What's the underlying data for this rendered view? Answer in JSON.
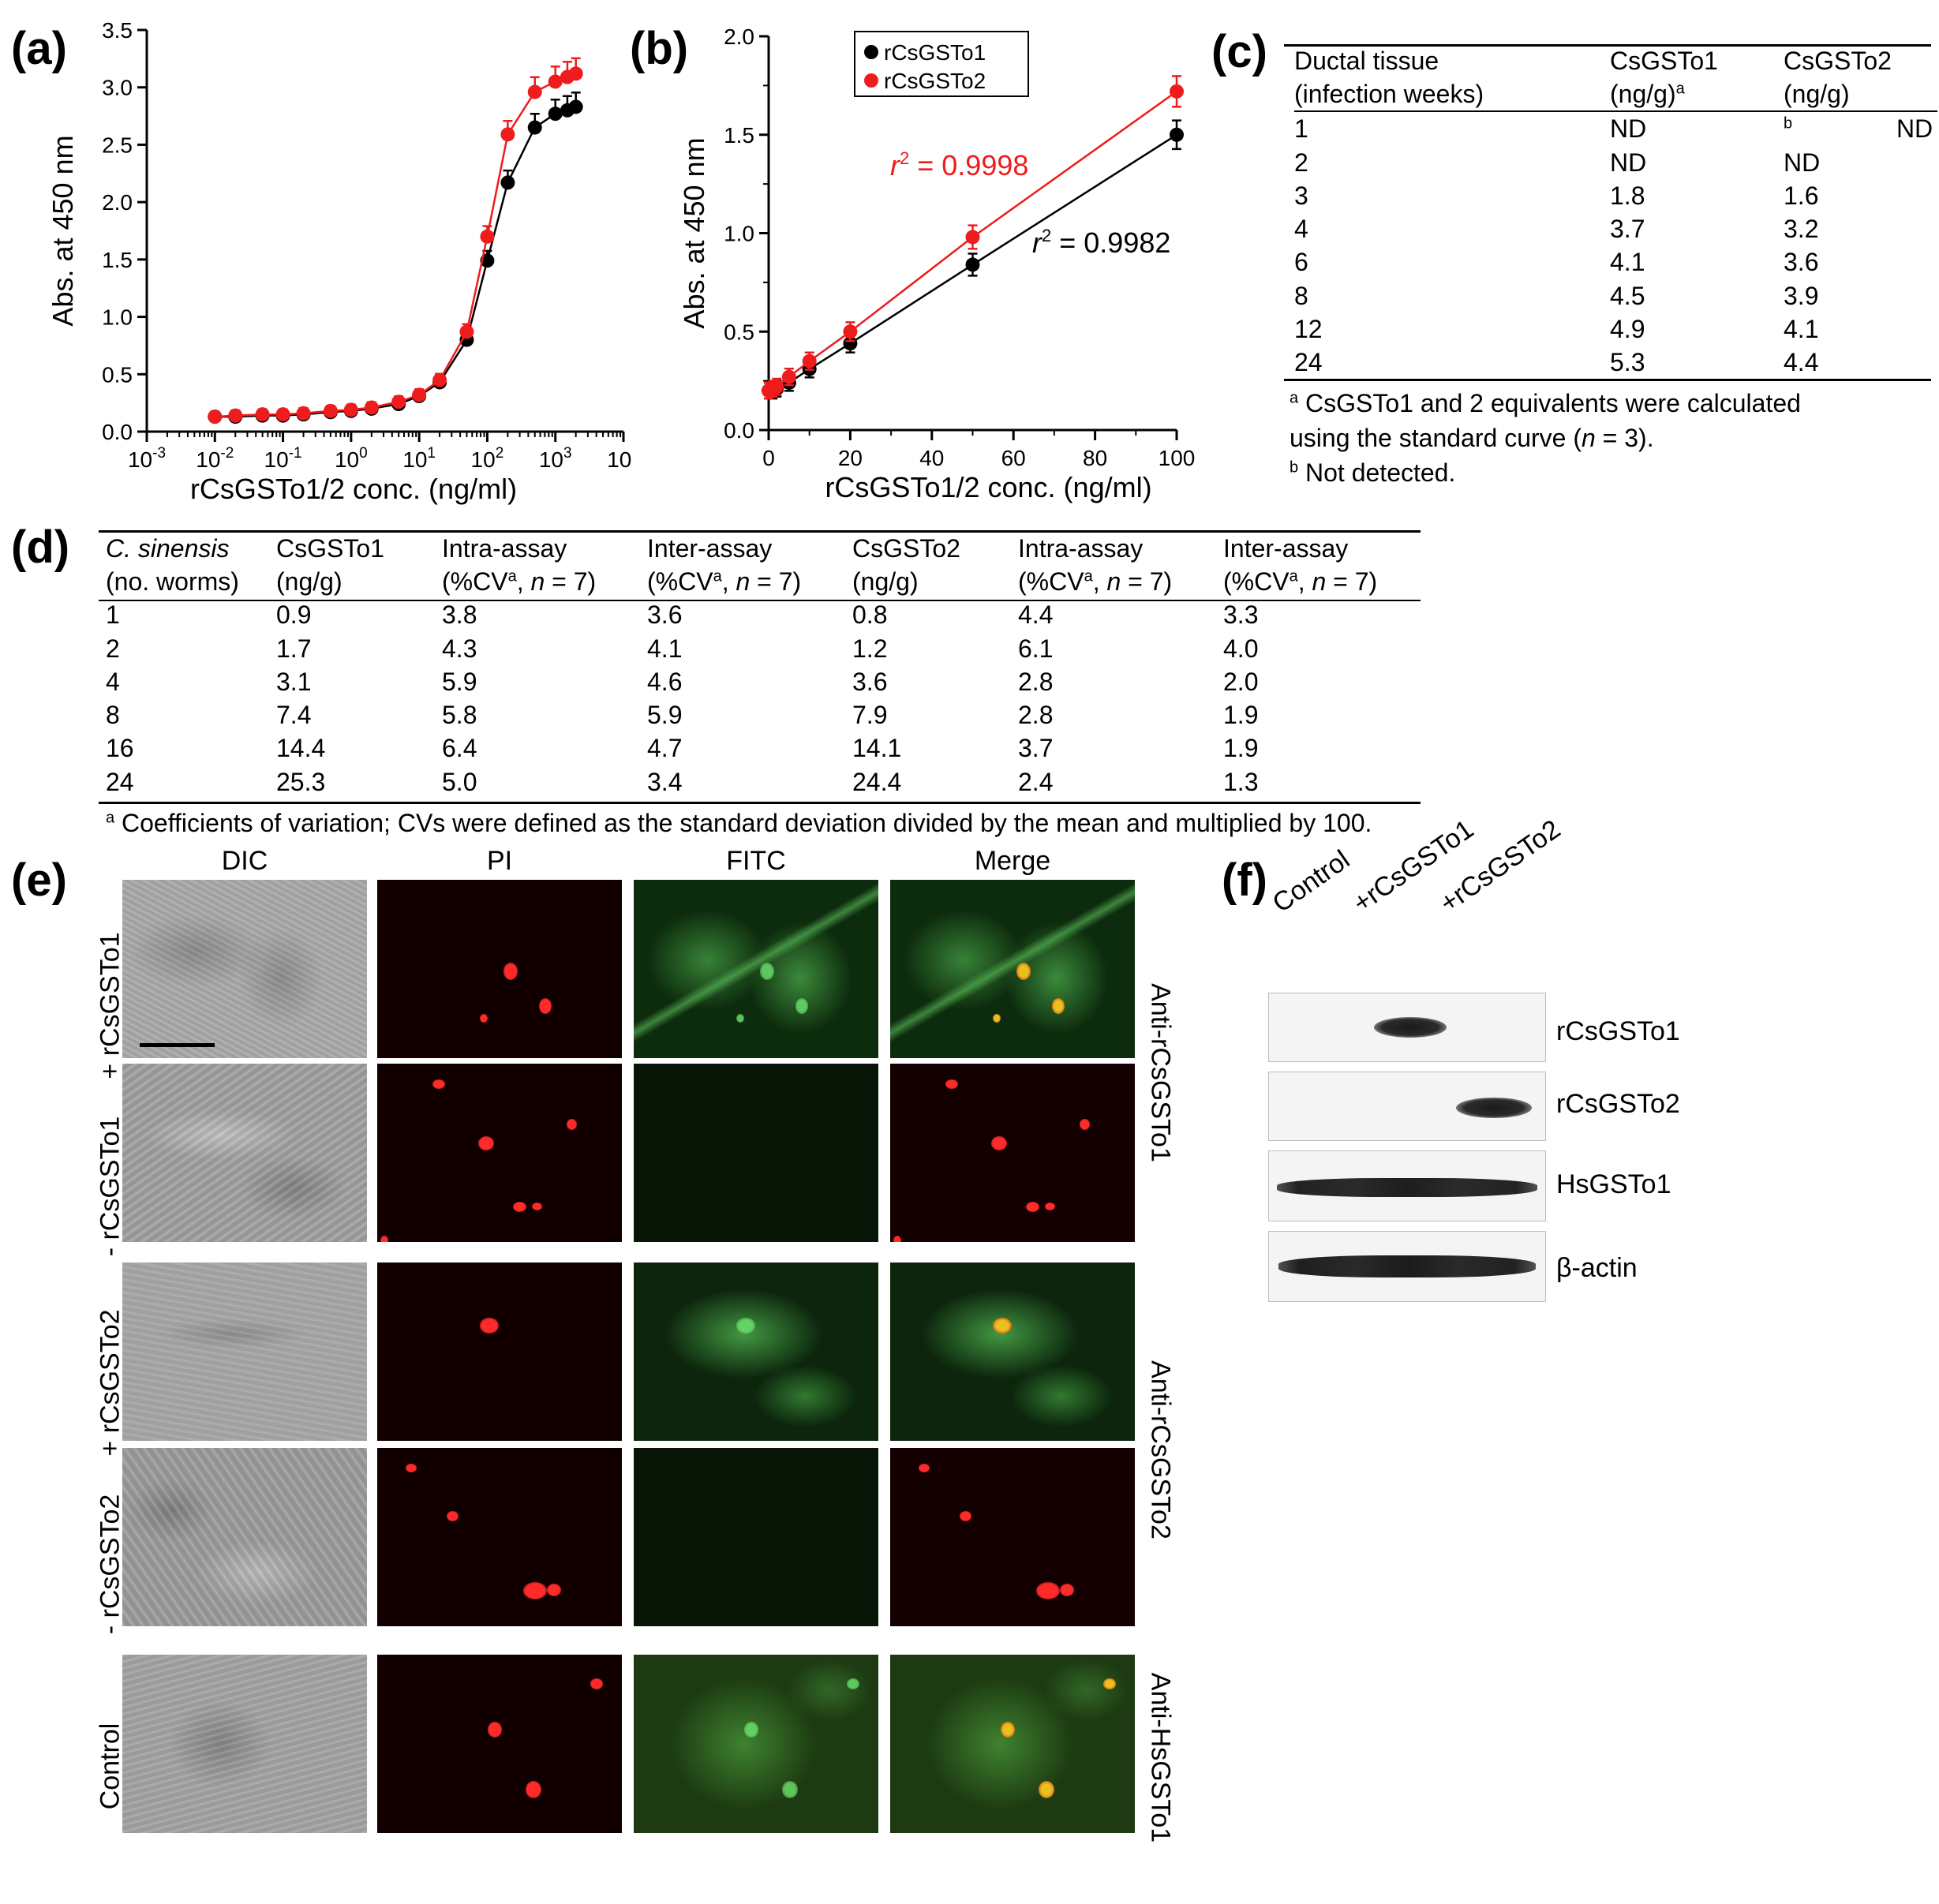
{
  "panels": {
    "a": "(a)",
    "b": "(b)",
    "c": "(c)",
    "d": "(d)",
    "e": "(e)",
    "f": "(f)"
  },
  "colors": {
    "series1": "#000000",
    "series2": "#ee1c1c",
    "pi": "#ff2a2a",
    "fitc": "#3bc23b"
  },
  "chart_data": [
    {
      "type": "scatter",
      "panel": "a",
      "xlabel": "rCsGSTo1/2 conc. (ng/ml)",
      "ylabel": "Abs. at 450 nm",
      "xscale": "log",
      "xlim": [
        0.001,
        10000
      ],
      "ylim": [
        0,
        3.5
      ],
      "xticks": [
        "10-3",
        "10-2",
        "10-1",
        "100",
        "101",
        "102",
        "103",
        "104"
      ],
      "yticks": [
        "0.0",
        "0.5",
        "1.0",
        "1.5",
        "2.0",
        "2.5",
        "3.0",
        "3.5"
      ],
      "series": [
        {
          "name": "rCsGSTo1",
          "color": "#000000",
          "x": [
            0.01,
            0.02,
            0.05,
            0.1,
            0.2,
            0.5,
            1,
            2,
            5,
            10,
            20,
            50,
            100,
            200,
            500,
            1000,
            1500,
            2000
          ],
          "y": [
            0.13,
            0.13,
            0.14,
            0.14,
            0.15,
            0.17,
            0.18,
            0.2,
            0.24,
            0.31,
            0.43,
            0.8,
            1.49,
            2.17,
            2.65,
            2.77,
            2.8,
            2.83
          ]
        },
        {
          "name": "rCsGSTo2",
          "color": "#ee1c1c",
          "x": [
            0.01,
            0.02,
            0.05,
            0.1,
            0.2,
            0.5,
            1,
            2,
            5,
            10,
            20,
            50,
            100,
            200,
            500,
            1000,
            1500,
            2000
          ],
          "y": [
            0.13,
            0.14,
            0.15,
            0.15,
            0.16,
            0.18,
            0.19,
            0.21,
            0.26,
            0.32,
            0.45,
            0.87,
            1.7,
            2.59,
            2.96,
            3.05,
            3.09,
            3.12
          ]
        }
      ]
    },
    {
      "type": "scatter",
      "panel": "b",
      "xlabel": "rCsGSTo1/2 conc. (ng/ml)",
      "ylabel": "Abs. at 450 nm",
      "xlim": [
        0,
        100
      ],
      "ylim": [
        0,
        2.0
      ],
      "xticks": [
        "0",
        "20",
        "40",
        "60",
        "80",
        "100"
      ],
      "yticks": [
        "0.0",
        "0.5",
        "1.0",
        "1.5",
        "2.0"
      ],
      "legend": "top-center",
      "series": [
        {
          "name": "rCsGSTo1",
          "color": "#000000",
          "x": [
            0,
            1,
            2,
            5,
            10,
            20,
            50,
            100
          ],
          "y": [
            0.2,
            0.2,
            0.21,
            0.24,
            0.31,
            0.44,
            0.84,
            1.5
          ],
          "annotation": "r2 = 0.9982"
        },
        {
          "name": "rCsGSTo2",
          "color": "#ee1c1c",
          "x": [
            0,
            1,
            2,
            5,
            10,
            20,
            50,
            100
          ],
          "y": [
            0.2,
            0.21,
            0.22,
            0.27,
            0.35,
            0.5,
            0.98,
            1.72
          ],
          "annotation": "r2 = 0.9998"
        }
      ]
    }
  ],
  "ann_b": {
    "black_r": "r",
    "black_val": " = 0.9982",
    "red_r": "r",
    "red_val": " = 0.9998",
    "sup": "2"
  },
  "table_c": {
    "header": [
      [
        "Ductal tissue",
        "CsGSTo1",
        "CsGSTo2"
      ],
      [
        "(infection weeks)",
        "(ng/g)",
        "(ng/g)"
      ]
    ],
    "header_sup": "a",
    "rows": [
      [
        "1",
        "ND",
        "ND"
      ],
      [
        "2",
        "ND",
        "ND"
      ],
      [
        "3",
        "1.8",
        "1.6"
      ],
      [
        "4",
        "3.7",
        "3.2"
      ],
      [
        "6",
        "4.1",
        "3.6"
      ],
      [
        "8",
        "4.5",
        "3.9"
      ],
      [
        "12",
        "4.9",
        "4.1"
      ],
      [
        "24",
        "5.3",
        "4.4"
      ]
    ],
    "nd_sup": "b",
    "foot1_sup": "a",
    "foot1": " CsGSTo1 and 2 equivalents were calculated",
    "foot2a": "using the standard curve (",
    "foot2n": "n",
    "foot2b": " = 3).",
    "foot3_sup": "b",
    "foot3": " Not detected."
  },
  "table_d": {
    "h1": [
      "C. sinensis",
      "CsGSTo1",
      "Intra-assay",
      "Inter-assay",
      "CsGSTo2",
      "Intra-assay",
      "Inter-assay"
    ],
    "h2_plain": [
      "(no. worms)",
      "(ng/g)",
      "(ng/g)"
    ],
    "cv_pre": "(%CV",
    "cv_sup": "a",
    "cv_mid": ", ",
    "cv_n": "n",
    "cv_post": " = 7)",
    "rows": [
      [
        "1",
        "0.9",
        "3.8",
        "3.6",
        "0.8",
        "4.4",
        "3.3"
      ],
      [
        "2",
        "1.7",
        "4.3",
        "4.1",
        "1.2",
        "6.1",
        "4.0"
      ],
      [
        "4",
        "3.1",
        "5.9",
        "4.6",
        "3.6",
        "2.8",
        "2.0"
      ],
      [
        "8",
        "7.4",
        "5.8",
        "5.9",
        "7.9",
        "2.8",
        "1.9"
      ],
      [
        "16",
        "14.4",
        "6.4",
        "4.7",
        "14.1",
        "3.7",
        "1.9"
      ],
      [
        "24",
        "25.3",
        "5.0",
        "3.4",
        "24.4",
        "2.4",
        "1.3"
      ]
    ],
    "foot_sup": "a",
    "foot": " Coefficients of variation; CVs were defined as the standard deviation divided by the mean and multiplied by 100."
  },
  "panel_e": {
    "columns": [
      "DIC",
      "PI",
      "FITC",
      "Merge"
    ],
    "rows_left": [
      "+ rCsGSTo1",
      "- rCsGSTo1",
      "+ rCsGSTo2",
      "- rCsGSTo2",
      "Control"
    ],
    "rows_right": [
      "Anti-rCsGSTo1",
      "Anti-rCsGSTo2",
      "Anti-HsGSTo1"
    ]
  },
  "panel_f": {
    "lanes": [
      "Control",
      "+rCsGSTo1",
      "+rCsGSTo2"
    ],
    "blots": [
      "rCsGSTo1",
      "rCsGSTo2",
      "HsGSTo1",
      "β-actin"
    ]
  }
}
